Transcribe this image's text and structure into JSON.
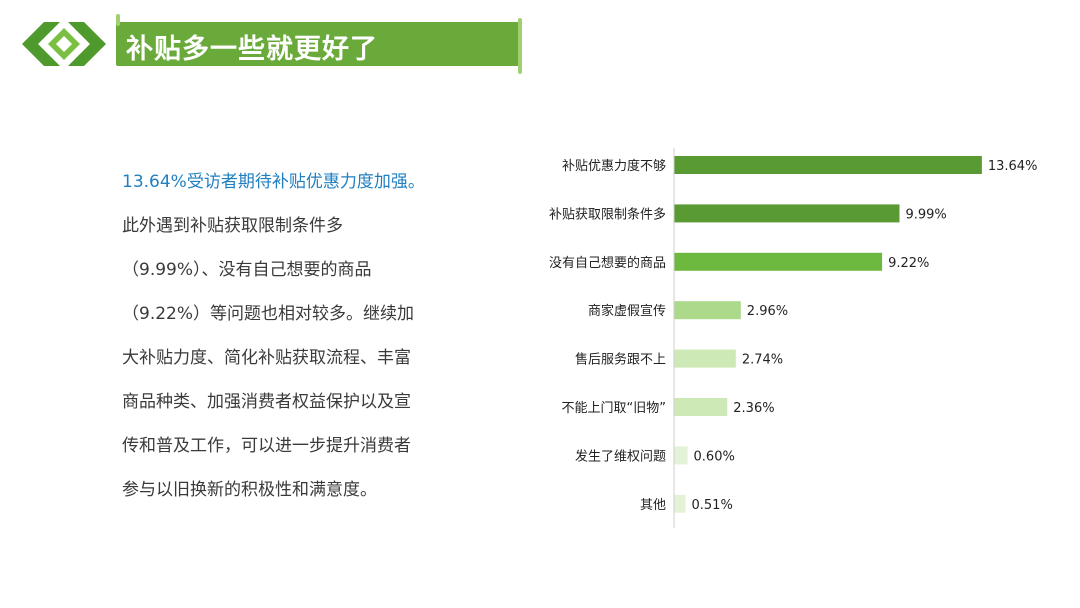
{
  "header": {
    "title": "补贴多一些就更好了"
  },
  "summary": {
    "lines": [
      "13.64%受访者期待补贴优惠力度加强。",
      "此外遇到补贴获取限制条件多",
      "（9.99%）、没有自己想要的商品",
      "（9.22%）等问题也相对较多。继续加",
      "大补贴力度、简化补贴获取流程、丰富",
      "商品种类、加强消费者权益保护以及宣",
      "传和普及工作，可以进一步提升消费者",
      "参与以旧换新的积极性和满意度。"
    ]
  },
  "colors": {
    "accent": "#6aaa3a",
    "highlight_text": "#1f7fc1",
    "bar_dark": "#5a9a32",
    "bar_mid": "#6db93f",
    "bar_light": "#acd98a",
    "bar_lighter": "#cdeab6",
    "bar_lightest": "#e4f3d8"
  },
  "chart_data": {
    "type": "bar",
    "orientation": "horizontal",
    "categories": [
      "补贴优惠力度不够",
      "补贴获取限制条件多",
      "没有自己想要的商品",
      "商家虚假宣传",
      "售后服务跟不上",
      "不能上门取“旧物”",
      "发生了维权问题",
      "其他"
    ],
    "values": [
      13.64,
      9.99,
      9.22,
      2.96,
      2.74,
      2.36,
      0.6,
      0.51
    ],
    "value_labels": [
      "13.64%",
      "9.99%",
      "9.22%",
      "2.96%",
      "2.74%",
      "2.36%",
      "0.60%",
      "0.51%"
    ],
    "xlim": [
      0,
      14
    ],
    "grid": false
  }
}
